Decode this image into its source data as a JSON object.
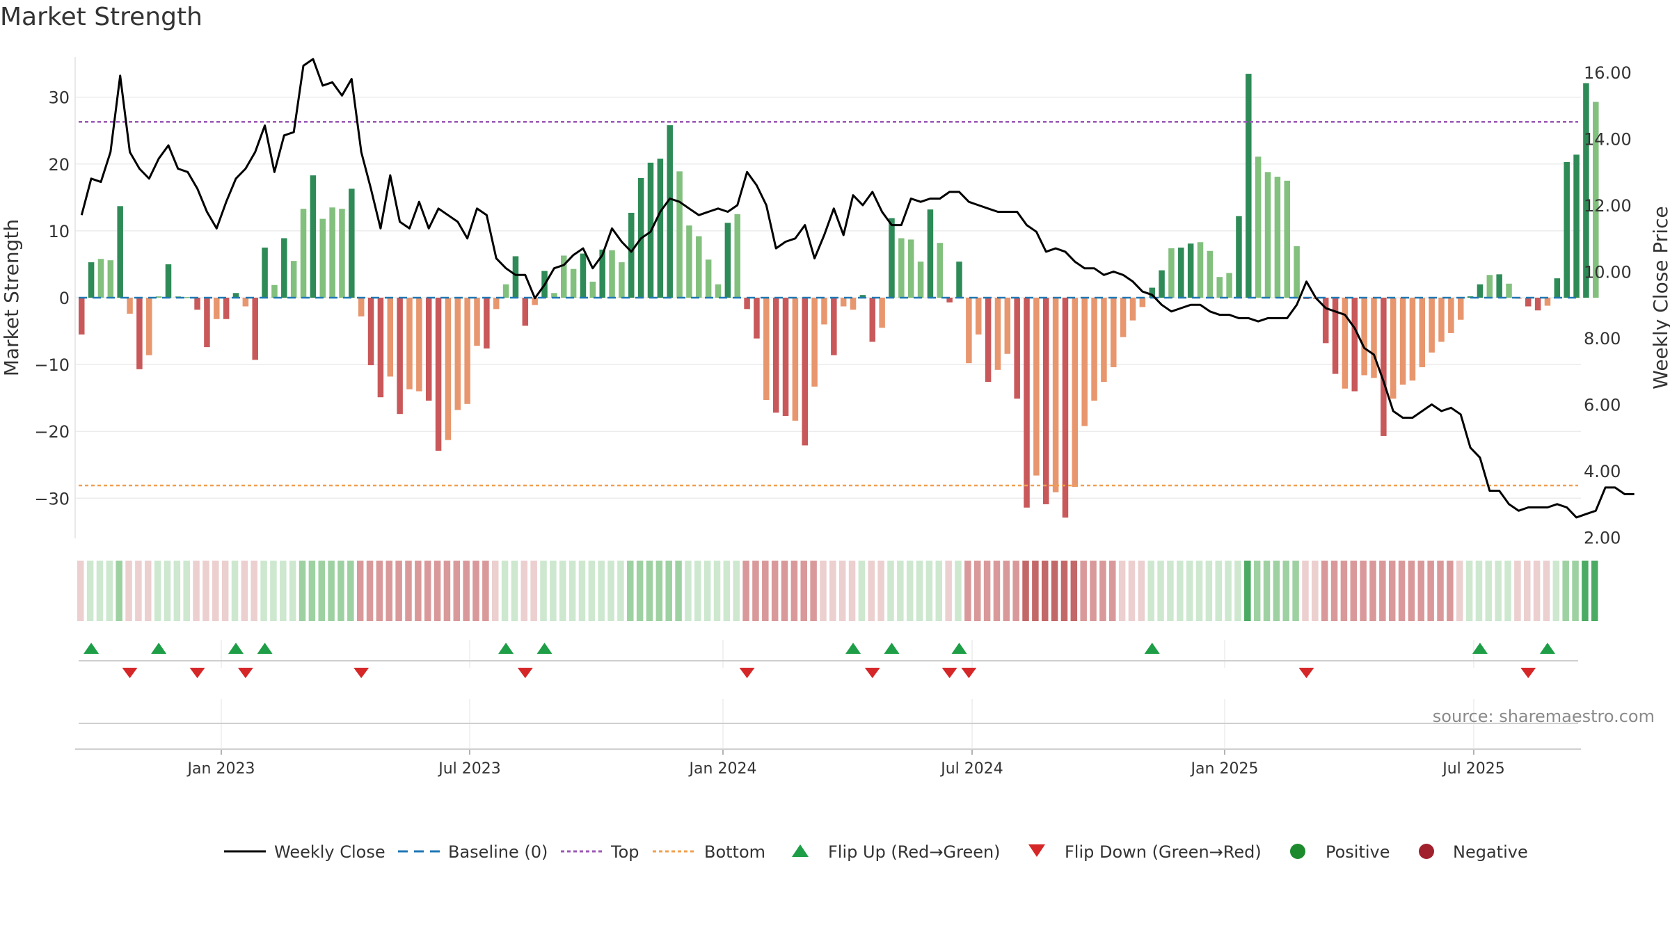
{
  "chart_data": {
    "type": "bar",
    "title": "Market Strength",
    "ylabel": "Market Strength",
    "y2label": "Weekly Close Price",
    "ylim": [
      -36.4,
      36.4
    ],
    "y2lim": [
      2.0,
      16.4
    ],
    "yticks": [
      "30",
      "20",
      "10",
      "0",
      "−10",
      "−20",
      "−30"
    ],
    "y2ticks": [
      "16.00",
      "14.00",
      "12.00",
      "10.00",
      "8.00",
      "6.00",
      "4.00",
      "2.00"
    ],
    "xticks": [
      "Jan 2023",
      "Jul 2023",
      "Jan 2024",
      "Jul 2024",
      "Jan 2025",
      "Jul 2025"
    ],
    "top_line": 26.3,
    "bottom_line": -28.1,
    "source": "source: sharemaestro.com",
    "series": [
      {
        "name": "Market Strength (weekly bars)",
        "values": [
          -5.5,
          5.3,
          5.8,
          5.6,
          13.7,
          -2.4,
          -10.7,
          -8.6,
          0.2,
          5.0,
          0.2,
          0.1,
          -1.8,
          -7.4,
          -3.2,
          -3.2,
          0.7,
          -1.3,
          -9.3,
          7.5,
          1.9,
          8.9,
          5.5,
          13.3,
          18.3,
          11.8,
          13.5,
          13.3,
          16.3,
          -2.8,
          -10.1,
          -14.9,
          -11.8,
          -17.4,
          -13.7,
          -14.0,
          -15.4,
          -22.9,
          -21.3,
          -16.8,
          -15.9,
          -7.2,
          -7.6,
          -1.7,
          2.0,
          6.2,
          -4.2,
          -1.1,
          4.0,
          0.7,
          6.3,
          4.3,
          6.6,
          2.4,
          7.2,
          7.1,
          5.3,
          12.7,
          17.9,
          20.2,
          20.8,
          25.8,
          18.9,
          10.8,
          9.2,
          5.7,
          2.0,
          11.2,
          12.5,
          -1.7,
          -6.1,
          -15.3,
          -17.2,
          -17.7,
          -18.4,
          -22.1,
          -13.3,
          -4.0,
          -8.6,
          -1.3,
          -1.8,
          0.4,
          -6.6,
          -4.5,
          11.9,
          8.9,
          8.7,
          5.4,
          13.2,
          8.2,
          -0.7,
          5.4,
          -9.8,
          -5.5,
          -12.6,
          -10.8,
          -8.4,
          -15.1,
          -31.4,
          -26.6,
          -30.9,
          -29.1,
          -32.9,
          -28.3,
          -19.2,
          -15.4,
          -12.6,
          -10.4,
          -5.9,
          -3.4,
          -1.4,
          1.5,
          4.1,
          7.4,
          7.5,
          8.1,
          8.3,
          7.0,
          3.1,
          3.7,
          12.2,
          33.5,
          21.1,
          18.8,
          18.1,
          17.5,
          7.7,
          -0.2,
          -0.2,
          -6.8,
          -11.4,
          -13.6,
          -14.0,
          -11.6,
          -12.0,
          -20.7,
          -15.1,
          -13.0,
          -12.4,
          -10.4,
          -8.2,
          -6.6,
          -5.3,
          -3.3,
          0.2,
          2.0,
          3.4,
          3.5,
          2.1,
          -0.1,
          -1.3,
          -1.9,
          -1.2,
          2.9,
          20.3,
          21.4,
          32.1,
          29.3
        ]
      },
      {
        "name": "Weekly Close",
        "values": [
          11.7,
          12.8,
          12.7,
          13.6,
          15.9,
          13.6,
          13.1,
          12.8,
          13.4,
          13.8,
          13.1,
          13.0,
          12.5,
          11.8,
          11.3,
          12.1,
          12.8,
          13.1,
          13.6,
          14.4,
          13.0,
          14.1,
          14.2,
          16.2,
          16.4,
          15.6,
          15.7,
          15.3,
          15.8,
          13.6,
          12.5,
          11.3,
          12.9,
          11.5,
          11.3,
          12.1,
          11.3,
          11.9,
          11.7,
          11.5,
          11.0,
          11.9,
          11.7,
          10.4,
          10.1,
          9.9,
          9.9,
          9.2,
          9.6,
          10.1,
          10.2,
          10.5,
          10.7,
          10.1,
          10.5,
          11.3,
          10.9,
          10.6,
          11.0,
          11.2,
          11.8,
          12.2,
          12.1,
          11.9,
          11.7,
          11.8,
          11.9,
          11.8,
          12.0,
          13.0,
          12.6,
          12.0,
          10.7,
          10.9,
          11.0,
          11.4,
          10.4,
          11.1,
          11.9,
          11.1,
          12.3,
          12.0,
          12.4,
          11.8,
          11.4,
          11.4,
          12.2,
          12.1,
          12.2,
          12.2,
          12.4,
          12.4,
          12.1,
          12.0,
          11.9,
          11.8,
          11.8,
          11.8,
          11.4,
          11.2,
          10.6,
          10.7,
          10.6,
          10.3,
          10.1,
          10.1,
          9.9,
          10.0,
          9.9,
          9.7,
          9.4,
          9.3,
          9.0,
          8.8,
          8.9,
          9.0,
          9.0,
          8.8,
          8.7,
          8.7,
          8.6,
          8.6,
          8.5,
          8.6,
          8.6,
          8.6,
          9.0,
          9.7,
          9.2,
          8.9,
          8.8,
          8.7,
          8.3,
          7.7,
          7.5,
          6.7,
          5.8,
          5.6,
          5.6,
          5.8,
          6.0,
          5.8,
          5.9,
          5.7,
          4.7,
          4.4,
          3.4,
          3.4,
          3.0,
          2.8,
          2.9,
          2.9,
          2.9,
          3.0,
          2.9,
          2.6,
          2.7,
          2.8,
          3.5,
          3.5,
          3.3,
          3.3
        ]
      }
    ],
    "heat_levels": [
      -1,
      1,
      1,
      1,
      2,
      -1,
      -1,
      -1,
      1,
      1,
      1,
      1,
      -1,
      -1,
      -1,
      -1,
      1,
      -1,
      -1,
      1,
      1,
      1,
      1,
      2,
      2,
      2,
      2,
      2,
      2,
      -2,
      -2,
      -2,
      -2,
      -2,
      -2,
      -2,
      -2,
      -2,
      -2,
      -2,
      -2,
      -2,
      -2,
      -1,
      1,
      1,
      -1,
      -1,
      1,
      1,
      1,
      1,
      1,
      1,
      1,
      1,
      1,
      2,
      2,
      2,
      2,
      2,
      2,
      1,
      1,
      1,
      1,
      1,
      1,
      -2,
      -2,
      -2,
      -2,
      -2,
      -2,
      -2,
      -2,
      -1,
      -1,
      -1,
      -1,
      1,
      -1,
      -1,
      1,
      1,
      1,
      1,
      1,
      1,
      -1,
      1,
      -2,
      -2,
      -2,
      -2,
      -2,
      -2,
      -3,
      -3,
      -3,
      -3,
      -3,
      -3,
      -2,
      -2,
      -2,
      -2,
      -1,
      -1,
      -1,
      1,
      1,
      1,
      1,
      1,
      1,
      1,
      1,
      1,
      1,
      3,
      2,
      2,
      2,
      2,
      2,
      -1,
      -1,
      -2,
      -2,
      -2,
      -2,
      -2,
      -2,
      -2,
      -2,
      -2,
      -2,
      -2,
      -2,
      -2,
      -2,
      -1,
      1,
      1,
      1,
      1,
      1,
      -1,
      -1,
      -1,
      -1,
      1,
      2,
      2,
      3,
      3
    ],
    "flip_up_weeks": [
      1,
      8,
      16,
      19,
      44,
      48,
      80,
      84,
      91,
      111,
      145,
      152
    ],
    "flip_down_weeks": [
      5,
      12,
      17,
      29,
      46,
      69,
      82,
      90,
      92,
      127,
      150
    ],
    "legend": [
      "Weekly Close",
      "Baseline (0)",
      "Top",
      "Bottom",
      "Flip Up (Red→Green)",
      "Flip Down (Green→Red)",
      "Positive",
      "Negative"
    ],
    "colors": {
      "pos_strong": "#2e8b57",
      "pos_light": "#82c07e",
      "neg_strong": "#c9585a",
      "neg_light": "#e8966e",
      "heat_pos": [
        "#cde8cf",
        "#9ed1a2",
        "#4bab62"
      ],
      "heat_neg": [
        "#eccfcf",
        "#d9999a",
        "#c36868"
      ],
      "line": "#000000",
      "baseline": "#1f77b4",
      "top": "#9b59b6",
      "bottom": "#f0a050",
      "flip_up": "#1e9e46",
      "flip_down": "#d62728",
      "positive": "#1e8a2e",
      "negative": "#a0202c"
    }
  }
}
